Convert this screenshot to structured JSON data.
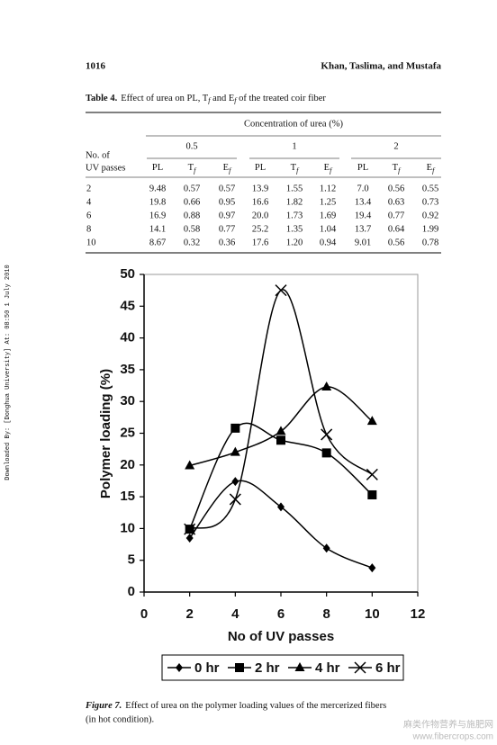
{
  "header": {
    "page_number": "1016",
    "authors": "Khan, Taslima, and Mustafa"
  },
  "side_note": "Downloaded By: [Donghua University] At: 08:50 1 July 2010",
  "table": {
    "label": "Table 4.",
    "caption_parts": [
      "Effect of urea on PL, T",
      "f",
      " and E",
      "f",
      " of the treated coir fiber"
    ],
    "spanner": "Concentration of urea (%)",
    "row_header": [
      "No. of",
      "UV passes"
    ],
    "groups": [
      "0.5",
      "1",
      "2"
    ],
    "subheaders": [
      {
        "text": "PL"
      },
      {
        "text": "T",
        "sub": "f"
      },
      {
        "text": "E",
        "sub": "f"
      }
    ],
    "rows": [
      [
        "2",
        "9.48",
        "0.57",
        "0.57",
        "13.9",
        "1.55",
        "1.12",
        "7.0",
        "0.56",
        "0.55"
      ],
      [
        "4",
        "19.8",
        "0.66",
        "0.95",
        "16.6",
        "1.82",
        "1.25",
        "13.4",
        "0.63",
        "0.73"
      ],
      [
        "6",
        "16.9",
        "0.88",
        "0.97",
        "20.0",
        "1.73",
        "1.69",
        "19.4",
        "0.77",
        "0.92"
      ],
      [
        "8",
        "14.1",
        "0.58",
        "0.77",
        "25.2",
        "1.35",
        "1.04",
        "13.7",
        "0.64",
        "1.99"
      ],
      [
        "10",
        "8.67",
        "0.32",
        "0.36",
        "17.6",
        "1.20",
        "0.94",
        "9.01",
        "0.56",
        "0.78"
      ]
    ]
  },
  "chart_data": {
    "type": "line",
    "smooth": true,
    "x_label": "No of UV passes",
    "y_label": "Polymer loading (%)",
    "x": [
      2,
      4,
      6,
      8,
      10
    ],
    "xlim": [
      0,
      12
    ],
    "xticks": [
      0,
      2,
      4,
      6,
      8,
      10,
      12
    ],
    "ylim": [
      0,
      50
    ],
    "yticks": [
      0,
      5,
      10,
      15,
      20,
      25,
      30,
      35,
      40,
      45,
      50
    ],
    "legend": "bottom",
    "series": [
      {
        "name": "0 hr",
        "color": "#000000",
        "marker": "diamond",
        "values": [
          8.5,
          17.4,
          13.4,
          6.9,
          3.8
        ]
      },
      {
        "name": "2 hr",
        "color": "#000000",
        "marker": "square",
        "values": [
          9.9,
          25.8,
          23.9,
          21.9,
          15.3
        ]
      },
      {
        "name": "4 hr",
        "color": "#000000",
        "marker": "triangle",
        "values": [
          19.9,
          22.0,
          25.3,
          32.3,
          26.9
        ]
      },
      {
        "name": "6 hr",
        "color": "#000000",
        "marker": "x",
        "values": [
          9.9,
          14.6,
          47.5,
          24.8,
          18.5
        ]
      }
    ]
  },
  "figure": {
    "label": "Figure 7.",
    "caption_lines": [
      "Effect of urea on the polymer loading values of the mercerized fibers",
      "(in hot condition)."
    ]
  },
  "watermark": [
    "麻类作物营养与施肥网",
    "www.fibercrops.com"
  ]
}
